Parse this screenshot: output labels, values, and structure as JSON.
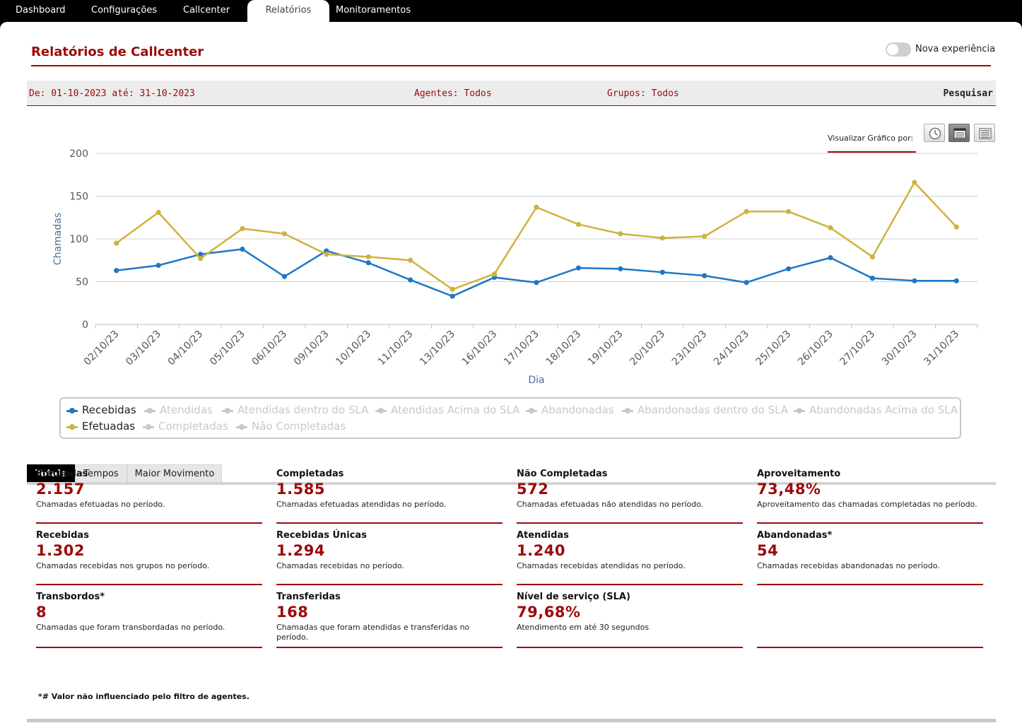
{
  "nav": {
    "tabs": [
      "Dashboard",
      "Configurações",
      "Callcenter",
      "Relatórios",
      "Monitoramentos"
    ],
    "active": "Relatórios"
  },
  "page": {
    "title": "Relatórios de Callcenter",
    "toggle_label": "Nova experiência",
    "toggle_on": false
  },
  "filters": {
    "period": "De: 01-10-2023 até: 31-10-2023",
    "agents": "Agentes: Todos",
    "groups": "Grupos: Todos",
    "search": "Pesquisar"
  },
  "view": {
    "label": "Visualizar Gráfico por:",
    "buttons": [
      "clock-icon",
      "card-view-icon",
      "list-view-icon"
    ],
    "active": "card-view-icon"
  },
  "colors": {
    "accent": "#9b0a0a",
    "recebidas": "#1f77c4",
    "efetuadas": "#cdb33e",
    "inactive": "#c8c8c8"
  },
  "chart_data": {
    "type": "line",
    "xlabel": "Dia",
    "ylabel": "Chamadas",
    "ylim": [
      0,
      200
    ],
    "yticks": [
      0,
      50,
      100,
      150,
      200
    ],
    "grid": true,
    "categories": [
      "02/10/23",
      "03/10/23",
      "04/10/23",
      "05/10/23",
      "06/10/23",
      "09/10/23",
      "10/10/23",
      "11/10/23",
      "13/10/23",
      "16/10/23",
      "17/10/23",
      "18/10/23",
      "19/10/23",
      "20/10/23",
      "23/10/23",
      "24/10/23",
      "25/10/23",
      "26/10/23",
      "27/10/23",
      "30/10/23",
      "31/10/23"
    ],
    "series": [
      {
        "name": "Recebidas",
        "color": "#1f77c4",
        "values": [
          63,
          69,
          82,
          88,
          56,
          86,
          72,
          52,
          33,
          55,
          49,
          66,
          65,
          61,
          57,
          49,
          65,
          78,
          54,
          51,
          51
        ]
      },
      {
        "name": "Efetuadas",
        "color": "#cdb33e",
        "values": [
          95,
          131,
          77,
          112,
          106,
          82,
          79,
          75,
          41,
          59,
          137,
          117,
          106,
          101,
          103,
          132,
          132,
          113,
          79,
          166,
          114
        ]
      }
    ],
    "legend": {
      "placement": "bottom",
      "row1": [
        {
          "name": "Recebidas",
          "active": true
        },
        {
          "name": "Atendidas",
          "active": false
        },
        {
          "name": "Atendidas dentro do SLA",
          "active": false
        },
        {
          "name": "Atendidas Acima do SLA",
          "active": false
        },
        {
          "name": "Abandonadas",
          "active": false
        },
        {
          "name": "Abandonadas dentro do SLA",
          "active": false
        },
        {
          "name": "Abandonadas Acima do SLA",
          "active": false
        }
      ],
      "row2": [
        {
          "name": "Efetuadas",
          "active": true
        },
        {
          "name": "Completadas",
          "active": false
        },
        {
          "name": "Não Completadas",
          "active": false
        }
      ]
    }
  },
  "tabs": [
    "Totais",
    "Tempos",
    "Maior Movimento"
  ],
  "active_tab": "Totais",
  "stats": [
    {
      "label": "Efetuadas",
      "value": "2.157",
      "desc": "Chamadas efetuadas no período."
    },
    {
      "label": "Completadas",
      "value": "1.585",
      "desc": "Chamadas efetuadas atendidas no período."
    },
    {
      "label": "Não Completadas",
      "value": "572",
      "desc": "Chamadas efetuadas não atendidas no período."
    },
    {
      "label": "Aproveitamento",
      "value": "73,48%",
      "desc": "Aproveitamento das chamadas completadas no período."
    },
    {
      "label": "Recebidas",
      "value": "1.302",
      "desc": "Chamadas recebidas nos grupos no período."
    },
    {
      "label": "Recebidas Únicas",
      "value": "1.294",
      "desc": "Chamadas recebidas no período."
    },
    {
      "label": "Atendidas",
      "value": "1.240",
      "desc": "Chamadas recebidas atendidas no período."
    },
    {
      "label": "Abandonadas*",
      "value": "54",
      "desc": "Chamadas recebidas abandonadas no período."
    },
    {
      "label": "Transbordos*",
      "value": "8",
      "desc": "Chamadas que foram transbordadas no período."
    },
    {
      "label": "Transferidas",
      "value": "168",
      "desc": "Chamadas que foram atendidas e transferidas no período."
    },
    {
      "label": "Nível de serviço (SLA)",
      "value": "79,68%",
      "desc": "Atendimento em até 30 segundos"
    }
  ],
  "footnote": "*# Valor não influenciado pelo filtro de agentes."
}
